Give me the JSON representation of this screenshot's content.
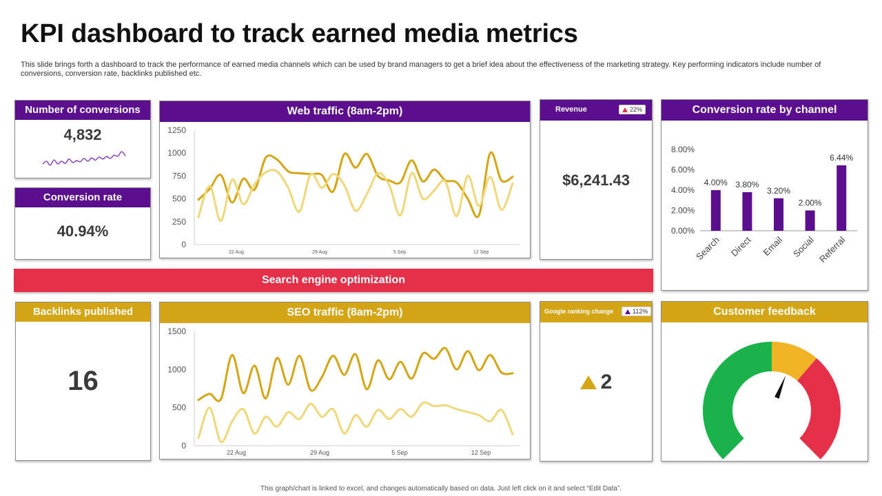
{
  "title": "KPI dashboard to track earned media metrics",
  "subtitle": "This slide brings forth a dashboard to track the performance of earned media channels which can be used by brand managers to get a brief idea about the effectiveness of the marketing strategy. Key performing indicators include number of conversions, conversion rate, backlinks published etc.",
  "footer": "This graph/chart is linked to excel, and changes automatically based on data. Just left click on it and select “Edit Data”.",
  "colors": {
    "purple": "#5b0f8f",
    "gold": "#d4a514",
    "light_gold": "#f0d77a",
    "red": "#e5304a",
    "green": "#1ab24a",
    "amber": "#f0b323"
  },
  "conversions": {
    "label": "Number of conversions",
    "value": "4,832"
  },
  "conversion_rate": {
    "label": "Conversion rate",
    "value": "40.94%"
  },
  "revenue": {
    "label": "Revenue",
    "value": "$6,241.43",
    "badge": "22%",
    "badge_icon": "up-triangle-red"
  },
  "seo_banner": "Search engine optimization",
  "backlinks": {
    "label": "Backlinks published",
    "value": "16"
  },
  "google_ranking": {
    "label": "Google ranking change",
    "value": "2",
    "badge": "112%",
    "badge_icon": "up-triangle-purple",
    "value_icon": "up-triangle-gold"
  },
  "customer_feedback": {
    "label": "Customer feedback"
  },
  "chart_data": [
    {
      "id": "conversions_sparkline",
      "type": "line",
      "y": [
        4,
        5,
        3.5,
        5.5,
        4,
        5,
        4.2,
        5.8,
        4.5,
        5.2,
        4.8,
        6,
        5,
        6.2,
        5.4,
        6.5,
        5.8,
        6.7,
        6,
        7.2,
        6.8,
        8.5,
        6.9
      ]
    },
    {
      "id": "web_traffic",
      "type": "line",
      "title": "Web traffic (8am-2pm)",
      "ylim": [
        0,
        1250
      ],
      "yticks": [
        0,
        250,
        500,
        750,
        1000,
        1250
      ],
      "xtick_labels": [
        "22 Aug",
        "29 Aug",
        "5 Sep",
        "12 Sep"
      ],
      "grid": false,
      "series": [
        {
          "color": "#d4a514",
          "values": [
            490,
            610,
            760,
            460,
            720,
            600,
            950,
            930,
            800,
            780,
            770,
            760,
            580,
            990,
            840,
            990,
            750,
            700,
            680,
            920,
            690,
            820,
            700,
            680,
            500,
            320,
            1000,
            700,
            740
          ]
        },
        {
          "color": "#f0d77a",
          "values": [
            300,
            640,
            260,
            710,
            440,
            660,
            790,
            800,
            620,
            360,
            770,
            620,
            770,
            650,
            370,
            550,
            780,
            650,
            320,
            780,
            500,
            590,
            690,
            310,
            750,
            420,
            740,
            380,
            670
          ]
        }
      ]
    },
    {
      "id": "conversion_by_channel",
      "type": "bar",
      "title": "Conversion rate by channel",
      "categories": [
        "Search",
        "Direct",
        "Email",
        "Social",
        "Referral"
      ],
      "values": [
        4.0,
        3.8,
        3.2,
        2.0,
        6.44
      ],
      "data_labels": [
        "4.00%",
        "3.80%",
        "3.20%",
        "2.00%",
        "6.44%"
      ],
      "ylim": [
        0,
        8
      ],
      "ytick_labels": [
        "0.00%",
        "2.00%",
        "4.00%",
        "6.00%",
        "8.00%"
      ],
      "color": "#5b0f8f"
    },
    {
      "id": "seo_traffic",
      "type": "line",
      "title": "SEO traffic (8am-2pm)",
      "ylim": [
        0,
        1500
      ],
      "yticks": [
        0,
        500,
        1000,
        1500
      ],
      "xtick_labels": [
        "22 Aug",
        "29 Aug",
        "5 Sep",
        "12 Sep"
      ],
      "grid": false,
      "series": [
        {
          "color": "#d4a514",
          "values": [
            600,
            680,
            610,
            1190,
            690,
            1050,
            620,
            1150,
            800,
            1180,
            730,
            900,
            1180,
            930,
            1200,
            740,
            1120,
            870,
            1100,
            880,
            1210,
            1140,
            1280,
            1000,
            1240,
            990,
            1190,
            960,
            950
          ]
        },
        {
          "color": "#f0d77a",
          "values": [
            100,
            500,
            50,
            320,
            480,
            160,
            380,
            250,
            440,
            350,
            550,
            380,
            480,
            160,
            400,
            250,
            470,
            350,
            480,
            380,
            560,
            520,
            530,
            480,
            440,
            400,
            320,
            470,
            150
          ]
        }
      ]
    },
    {
      "id": "customer_feedback_gauge",
      "type": "pie",
      "segments": [
        {
          "color": "#1ab24a",
          "value": 0.5
        },
        {
          "color": "#f0b323",
          "value": 0.15
        },
        {
          "color": "#e5304a",
          "value": 0.35
        }
      ],
      "needle": 0.58
    }
  ]
}
